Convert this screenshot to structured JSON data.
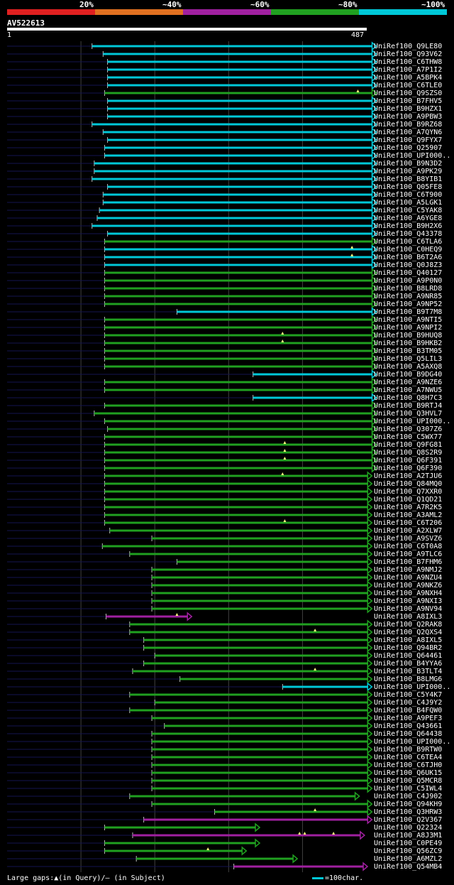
{
  "legend": {
    "labels": [
      "20%",
      "~40%",
      "~60%",
      "~80%",
      "~100%"
    ],
    "colors": [
      "#e02020",
      "#e07020",
      "#a020a0",
      "#20a020",
      "#00c8d8"
    ]
  },
  "query": {
    "name": "AV522613",
    "start": "1",
    "end": "487",
    "length": 487
  },
  "footer": {
    "gaps_text": "Large gaps:▲(in Query)/– (in Subject)",
    "scale_text": "=100char."
  },
  "hits": [
    {
      "label": "UniRef100_Q9LE80",
      "start": 115,
      "end": 500,
      "color": "#00c8d8"
    },
    {
      "label": "UniRef100_Q93V62",
      "start": 130,
      "end": 500,
      "color": "#00c8d8"
    },
    {
      "label": "UniRef100_C6THW8",
      "start": 136,
      "end": 500,
      "color": "#00c8d8"
    },
    {
      "label": "UniRef100_A7P1I2",
      "start": 136,
      "end": 500,
      "color": "#00c8d8"
    },
    {
      "label": "UniRef100_A5BPK4",
      "start": 136,
      "end": 500,
      "color": "#00c8d8"
    },
    {
      "label": "UniRef100_C6TLE0",
      "start": 136,
      "end": 500,
      "color": "#00c8d8"
    },
    {
      "label": "UniRef100_Q9SZS0",
      "start": 132,
      "end": 500,
      "color": "#20a020",
      "gaps": [
        475
      ]
    },
    {
      "label": "UniRef100_B7FHV5",
      "start": 136,
      "end": 500,
      "color": "#00c8d8"
    },
    {
      "label": "UniRef100_B9HZX1",
      "start": 136,
      "end": 500,
      "color": "#00c8d8"
    },
    {
      "label": "UniRef100_A9PBW3",
      "start": 136,
      "end": 500,
      "color": "#00c8d8"
    },
    {
      "label": "UniRef100_B9RZ68",
      "start": 115,
      "end": 500,
      "color": "#00c8d8"
    },
    {
      "label": "UniRef100_A7QYN6",
      "start": 130,
      "end": 500,
      "color": "#00c8d8"
    },
    {
      "label": "UniRef100_Q9FYX7",
      "start": 136,
      "end": 500,
      "color": "#00c8d8"
    },
    {
      "label": "UniRef100_Q25907",
      "start": 132,
      "end": 500,
      "color": "#00c8d8"
    },
    {
      "label": "UniRef100_UPI000..",
      "start": 132,
      "end": 500,
      "color": "#00c8d8"
    },
    {
      "label": "UniRef100_B9N3D2",
      "start": 118,
      "end": 500,
      "color": "#00c8d8"
    },
    {
      "label": "UniRef100_A9PK29",
      "start": 118,
      "end": 500,
      "color": "#00c8d8"
    },
    {
      "label": "UniRef100_B8YIB1",
      "start": 115,
      "end": 500,
      "color": "#00c8d8"
    },
    {
      "label": "UniRef100_Q05FE8",
      "start": 136,
      "end": 500,
      "color": "#00c8d8"
    },
    {
      "label": "UniRef100_C6T900",
      "start": 130,
      "end": 500,
      "color": "#00c8d8"
    },
    {
      "label": "UniRef100_A5LGK1",
      "start": 130,
      "end": 500,
      "color": "#00c8d8"
    },
    {
      "label": "UniRef100_C5YAK8",
      "start": 125,
      "end": 500,
      "color": "#00c8d8"
    },
    {
      "label": "UniRef100_A6YGE8",
      "start": 122,
      "end": 500,
      "color": "#00c8d8"
    },
    {
      "label": "UniRef100_B9H2X6",
      "start": 115,
      "end": 500,
      "color": "#00c8d8"
    },
    {
      "label": "UniRef100_Q43378",
      "start": 136,
      "end": 500,
      "color": "#00c8d8"
    },
    {
      "label": "UniRef100_C6TLA6",
      "start": 132,
      "end": 500,
      "color": "#20a020"
    },
    {
      "label": "UniRef100_C0HEQ9",
      "start": 132,
      "end": 500,
      "color": "#00c8d8",
      "gaps": [
        467
      ]
    },
    {
      "label": "UniRef100_B6T2A6",
      "start": 132,
      "end": 500,
      "color": "#00c8d8",
      "gaps": [
        467
      ]
    },
    {
      "label": "UniRef100_Q0J8Z3",
      "start": 132,
      "end": 500,
      "color": "#00c8d8"
    },
    {
      "label": "UniRef100_Q40127",
      "start": 132,
      "end": 500,
      "color": "#20a020"
    },
    {
      "label": "UniRef100_A9P0N0",
      "start": 132,
      "end": 500,
      "color": "#20a020"
    },
    {
      "label": "UniRef100_B8LRD8",
      "start": 132,
      "end": 500,
      "color": "#20a020"
    },
    {
      "label": "UniRef100_A9NR85",
      "start": 132,
      "end": 500,
      "color": "#20a020"
    },
    {
      "label": "UniRef100_A9NP52",
      "start": 132,
      "end": 500,
      "color": "#20a020"
    },
    {
      "label": "UniRef100_B9T7M8",
      "start": 230,
      "end": 500,
      "color": "#00c8d8"
    },
    {
      "label": "UniRef100_A9NTI5",
      "start": 132,
      "end": 500,
      "color": "#20a020"
    },
    {
      "label": "UniRef100_A9NPI2",
      "start": 132,
      "end": 500,
      "color": "#20a020"
    },
    {
      "label": "UniRef100_B9HUQ8",
      "start": 132,
      "end": 500,
      "color": "#20a020",
      "gaps": [
        373
      ]
    },
    {
      "label": "UniRef100_B9HKB2",
      "start": 132,
      "end": 500,
      "color": "#20a020",
      "gaps": [
        373
      ]
    },
    {
      "label": "UniRef100_B3TM05",
      "start": 132,
      "end": 500,
      "color": "#20a020"
    },
    {
      "label": "UniRef100_Q5LIL3",
      "start": 132,
      "end": 500,
      "color": "#20a020"
    },
    {
      "label": "UniRef100_A5AXQ8",
      "start": 132,
      "end": 500,
      "color": "#20a020"
    },
    {
      "label": "UniRef100_B9DG40",
      "start": 333,
      "end": 500,
      "color": "#00c8d8"
    },
    {
      "label": "UniRef100_A9NZE6",
      "start": 132,
      "end": 500,
      "color": "#20a020"
    },
    {
      "label": "UniRef100_A7NWU5",
      "start": 132,
      "end": 500,
      "color": "#20a020"
    },
    {
      "label": "UniRef100_Q8H7C3",
      "start": 333,
      "end": 500,
      "color": "#00c8d8"
    },
    {
      "label": "UniRef100_B9RTJ4",
      "start": 132,
      "end": 500,
      "color": "#20a020"
    },
    {
      "label": "UniRef100_Q3HVL7",
      "start": 118,
      "end": 500,
      "color": "#20a020"
    },
    {
      "label": "UniRef100_UPI000..",
      "start": 132,
      "end": 500,
      "color": "#20a020"
    },
    {
      "label": "UniRef100_Q307Z6",
      "start": 136,
      "end": 500,
      "color": "#20a020"
    },
    {
      "label": "UniRef100_C5WX77",
      "start": 132,
      "end": 500,
      "color": "#20a020"
    },
    {
      "label": "UniRef100_Q9FG81",
      "start": 132,
      "end": 500,
      "color": "#20a020",
      "gaps": [
        376
      ]
    },
    {
      "label": "UniRef100_Q8S2R9",
      "start": 132,
      "end": 500,
      "color": "#20a020",
      "gaps": [
        376
      ]
    },
    {
      "label": "UniRef100_Q6F391",
      "start": 132,
      "end": 500,
      "color": "#20a020",
      "gaps": [
        376
      ]
    },
    {
      "label": "UniRef100_Q6F390",
      "start": 132,
      "end": 500,
      "color": "#20a020"
    },
    {
      "label": "UniRef100_A2TJU6",
      "start": 132,
      "end": 494,
      "color": "#20a020",
      "gaps": [
        373
      ]
    },
    {
      "label": "UniRef100_Q84MQ0",
      "start": 132,
      "end": 494,
      "color": "#20a020"
    },
    {
      "label": "UniRef100_Q7XXR0",
      "start": 132,
      "end": 494,
      "color": "#20a020"
    },
    {
      "label": "UniRef100_Q1QD21",
      "start": 132,
      "end": 494,
      "color": "#20a020"
    },
    {
      "label": "UniRef100_A7R2K5",
      "start": 132,
      "end": 494,
      "color": "#20a020"
    },
    {
      "label": "UniRef100_A3AML2",
      "start": 132,
      "end": 494,
      "color": "#20a020"
    },
    {
      "label": "UniRef100_C6T206",
      "start": 132,
      "end": 494,
      "color": "#20a020",
      "gaps": [
        376
      ]
    },
    {
      "label": "UniRef100_A2XLW7",
      "start": 139,
      "end": 494,
      "color": "#20a020"
    },
    {
      "label": "UniRef100_A9SVZ6",
      "start": 196,
      "end": 494,
      "color": "#20a020"
    },
    {
      "label": "UniRef100_C6T0A8",
      "start": 129,
      "end": 494,
      "color": "#20a020"
    },
    {
      "label": "UniRef100_A9TLC6",
      "start": 166,
      "end": 494,
      "color": "#20a020"
    },
    {
      "label": "UniRef100_B7FHM6",
      "start": 230,
      "end": 494,
      "color": "#20a020"
    },
    {
      "label": "UniRef100_A9NMJ2",
      "start": 196,
      "end": 494,
      "color": "#20a020"
    },
    {
      "label": "UniRef100_A9NZU4",
      "start": 196,
      "end": 494,
      "color": "#20a020"
    },
    {
      "label": "UniRef100_A9NKZ6",
      "start": 196,
      "end": 494,
      "color": "#20a020"
    },
    {
      "label": "UniRef100_A9NXH4",
      "start": 196,
      "end": 494,
      "color": "#20a020"
    },
    {
      "label": "UniRef100_A9NXI3",
      "start": 196,
      "end": 494,
      "color": "#20a020"
    },
    {
      "label": "UniRef100_A9NV94",
      "start": 196,
      "end": 494,
      "color": "#20a020"
    },
    {
      "label": "UniRef100_A8IXL3",
      "start": 134,
      "end": 250,
      "color": "#a020a0",
      "gaps": [
        230
      ]
    },
    {
      "label": "UniRef100_Q2RAK8",
      "start": 166,
      "end": 494,
      "color": "#20a020"
    },
    {
      "label": "UniRef100_Q2QXS4",
      "start": 166,
      "end": 494,
      "color": "#20a020",
      "gaps": [
        417
      ]
    },
    {
      "label": "UniRef100_A8IXL5",
      "start": 185,
      "end": 494,
      "color": "#20a020"
    },
    {
      "label": "UniRef100_Q94BR2",
      "start": 185,
      "end": 494,
      "color": "#20a020"
    },
    {
      "label": "UniRef100_Q64461",
      "start": 200,
      "end": 494,
      "color": "#20a020"
    },
    {
      "label": "UniRef100_B4YYA6",
      "start": 185,
      "end": 494,
      "color": "#20a020"
    },
    {
      "label": "UniRef100_B3TLT4",
      "start": 170,
      "end": 494,
      "color": "#20a020",
      "gaps": [
        417
      ]
    },
    {
      "label": "UniRef100_B8LMG6",
      "start": 234,
      "end": 494,
      "color": "#20a020"
    },
    {
      "label": "UniRef100_UPI000..",
      "start": 373,
      "end": 494,
      "color": "#00c8d8"
    },
    {
      "label": "UniRef100_C5Y4K7",
      "start": 166,
      "end": 494,
      "color": "#20a020"
    },
    {
      "label": "UniRef100_C4J9Y2",
      "start": 200,
      "end": 494,
      "color": "#20a020"
    },
    {
      "label": "UniRef100_B4FQW0",
      "start": 166,
      "end": 494,
      "color": "#20a020"
    },
    {
      "label": "UniRef100_A9PEF3",
      "start": 196,
      "end": 494,
      "color": "#20a020"
    },
    {
      "label": "UniRef100_Q43661",
      "start": 213,
      "end": 494,
      "color": "#20a020"
    },
    {
      "label": "UniRef100_Q64438",
      "start": 196,
      "end": 494,
      "color": "#20a020"
    },
    {
      "label": "UniRef100_UPI000..",
      "start": 196,
      "end": 494,
      "color": "#20a020"
    },
    {
      "label": "UniRef100_B9RTW0",
      "start": 196,
      "end": 494,
      "color": "#20a020"
    },
    {
      "label": "UniRef100_C6TEA4",
      "start": 196,
      "end": 494,
      "color": "#20a020"
    },
    {
      "label": "UniRef100_C6TJH0",
      "start": 196,
      "end": 494,
      "color": "#20a020"
    },
    {
      "label": "UniRef100_Q6UK15",
      "start": 196,
      "end": 494,
      "color": "#20a020"
    },
    {
      "label": "UniRef100_Q5MCR8",
      "start": 196,
      "end": 494,
      "color": "#20a020"
    },
    {
      "label": "UniRef100_C5IWL4",
      "start": 196,
      "end": 494,
      "color": "#20a020"
    },
    {
      "label": "UniRef100_C4J902",
      "start": 166,
      "end": 477,
      "color": "#20a020"
    },
    {
      "label": "UniRef100_Q94KH9",
      "start": 196,
      "end": 494,
      "color": "#20a020"
    },
    {
      "label": "UniRef100_Q3HRW3",
      "start": 281,
      "end": 494,
      "color": "#20a020",
      "gaps": [
        417
      ]
    },
    {
      "label": "UniRef100_Q2V367",
      "start": 185,
      "end": 494,
      "color": "#a020a0"
    },
    {
      "label": "UniRef100_Q22324",
      "start": 132,
      "end": 342,
      "color": "#20a020"
    },
    {
      "label": "UniRef100_A8J3M1",
      "start": 170,
      "end": 484,
      "color": "#a020a0",
      "gaps": [
        396,
        403,
        442
      ]
    },
    {
      "label": "UniRef100_C0PE49",
      "start": 132,
      "end": 342,
      "color": "#20a020"
    },
    {
      "label": "UniRef100_Q56ZC9",
      "start": 132,
      "end": 324,
      "color": "#20a020",
      "gaps": [
        272
      ]
    },
    {
      "label": "UniRef100_A6MZL2",
      "start": 175,
      "end": 393,
      "color": "#20a020"
    },
    {
      "label": "UniRef100_Q54MB4",
      "start": 307,
      "end": 488,
      "color": "#a020a0"
    }
  ]
}
